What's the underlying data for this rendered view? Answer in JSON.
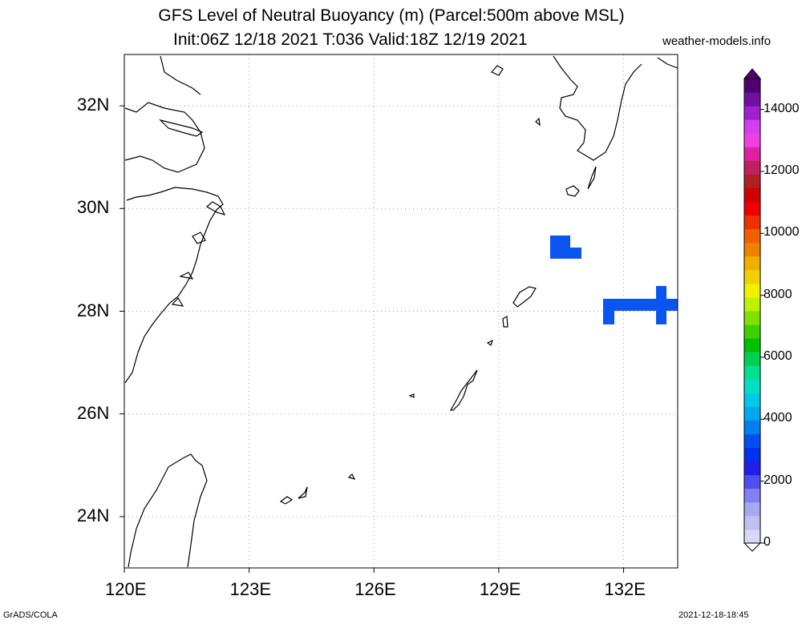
{
  "title": {
    "line1": "GFS Level of Neutral Buoyancy (m) (Parcel:500m above MSL)",
    "line2": "Init:06Z 12/18 2021 T:036 Valid:18Z 12/19 2021",
    "site": "weather-models.info"
  },
  "map": {
    "lon_range": [
      120,
      133.3
    ],
    "lat_range": [
      23,
      33
    ],
    "x_ticks": [
      {
        "value": 120,
        "label": "120E"
      },
      {
        "value": 123,
        "label": "123E"
      },
      {
        "value": 126,
        "label": "126E"
      },
      {
        "value": 129,
        "label": "129E"
      },
      {
        "value": 132,
        "label": "132E"
      }
    ],
    "y_ticks": [
      {
        "value": 24,
        "label": "24N"
      },
      {
        "value": 26,
        "label": "26N"
      },
      {
        "value": 28,
        "label": "28N"
      },
      {
        "value": 30,
        "label": "30N"
      },
      {
        "value": 32,
        "label": "32N"
      }
    ],
    "grid": true,
    "features": [
      {
        "name": "Amami region",
        "lon": [
          130.2,
          130.6
        ],
        "lat": [
          29.0,
          29.5
        ],
        "value": 2000
      },
      {
        "name": "east bar",
        "lon": [
          131.4,
          133.3
        ],
        "lat": [
          27.8,
          28.5
        ],
        "value": 2000
      }
    ]
  },
  "colorbar": {
    "range": [
      0,
      15000
    ],
    "labels": [
      {
        "value": 0,
        "label": "0"
      },
      {
        "value": 2000,
        "label": "2000"
      },
      {
        "value": 4000,
        "label": "4000"
      },
      {
        "value": 6000,
        "label": "6000"
      },
      {
        "value": 8000,
        "label": "8000"
      },
      {
        "value": 10000,
        "label": "10000"
      },
      {
        "value": 12000,
        "label": "12000"
      },
      {
        "value": 14000,
        "label": "14000"
      }
    ],
    "colors": [
      "#d8d8f8",
      "#c0c0f0",
      "#a8a8f0",
      "#8080f0",
      "#5050f0",
      "#2020e8",
      "#0030f0",
      "#0050f0",
      "#0080f0",
      "#00a8f0",
      "#00c8e8",
      "#00e0c0",
      "#00e090",
      "#00d050",
      "#00c000",
      "#40d000",
      "#80e000",
      "#c0f000",
      "#f0f000",
      "#f0d000",
      "#f0b000",
      "#f08000",
      "#f06000",
      "#f03000",
      "#f00000",
      "#d00000",
      "#b02020",
      "#c02060",
      "#e020a0",
      "#f040e0",
      "#d040f0",
      "#a020d0",
      "#7010a0",
      "#500070"
    ]
  },
  "footer": {
    "left": "GrADS/COLA",
    "right": "2021-12-18-18:45"
  }
}
